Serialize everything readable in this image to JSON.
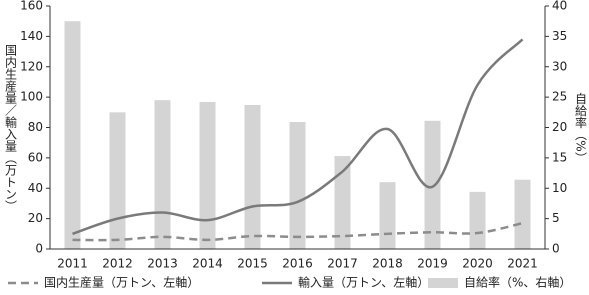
{
  "chart_data": {
    "type": "combo",
    "y_label": "国内生産量／輸入量（万トン）",
    "y2_label": "自給率（%）",
    "categories": [
      "2011",
      "2012",
      "2013",
      "2014",
      "2015",
      "2016",
      "2017",
      "2018",
      "2019",
      "2020",
      "2021"
    ],
    "series": [
      {
        "name": "国内生産量（万トン、左軸）",
        "type": "line",
        "dash": true,
        "color": "#8c8c8c",
        "values": [
          6,
          6,
          8,
          6,
          8.5,
          8,
          8.5,
          10,
          11,
          10.5,
          17
        ]
      },
      {
        "name": "輸入量（万トン、左軸）",
        "type": "line",
        "color": "#7a7a7a",
        "values": [
          10,
          20,
          24,
          19,
          28,
          31,
          51,
          79,
          41,
          108,
          138
        ]
      },
      {
        "name": "自給率（%、右軸）",
        "type": "bar",
        "axis": "y2",
        "color": "#d4d4d4",
        "values": [
          37.5,
          22.5,
          24.5,
          24.2,
          23.7,
          20.9,
          15.3,
          11,
          21.1,
          9.4,
          11.4
        ]
      }
    ],
    "ylim": [
      0,
      160
    ],
    "yticks": [
      0,
      20,
      40,
      60,
      80,
      100,
      120,
      140,
      160
    ],
    "y2lim": [
      0,
      40
    ],
    "y2ticks": [
      0,
      5,
      10,
      15,
      20,
      25,
      30,
      35,
      40
    ]
  }
}
